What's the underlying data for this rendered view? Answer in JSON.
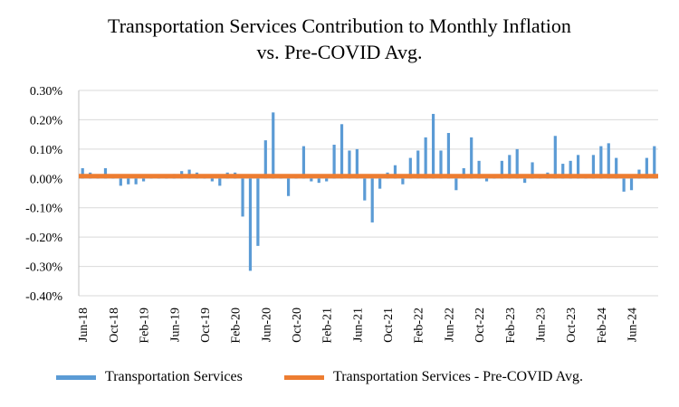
{
  "chart_data": {
    "type": "bar",
    "title_lines": [
      "Transportation Services Contribution to Monthly Inflation",
      "vs. Pre-COVID Avg."
    ],
    "xlabel": "",
    "ylabel": "",
    "ylim": [
      -0.4,
      0.3
    ],
    "yticks": [
      0.3,
      0.2,
      0.1,
      0.0,
      -0.1,
      -0.2,
      -0.3,
      -0.4
    ],
    "ytick_labels": [
      "0.30%",
      "0.20%",
      "0.10%",
      "0.00%",
      "-0.10%",
      "-0.20%",
      "-0.30%",
      "-0.40%"
    ],
    "categories_start": "Jun-18",
    "x_tick_labels": [
      "Jun-18",
      "Oct-18",
      "Feb-19",
      "Jun-19",
      "Oct-19",
      "Feb-20",
      "Jun-20",
      "Oct-20",
      "Feb-21",
      "Jun-21",
      "Oct-21",
      "Feb-22",
      "Jun-22",
      "Oct-22",
      "Feb-23",
      "Jun-23",
      "Oct-23",
      "Feb-24",
      "Jun-24"
    ],
    "grid": true,
    "legend_position": "bottom",
    "colors": {
      "bar": "#5b9bd5",
      "line": "#ed7d31",
      "grid": "#d9d9d9",
      "axis": "#bfbfbf"
    },
    "series": [
      {
        "name": "Transportation Services",
        "kind": "bar",
        "values": [
          0.035,
          0.02,
          0.01,
          0.035,
          0.005,
          -0.025,
          -0.02,
          -0.02,
          -0.01,
          0.005,
          0.01,
          0.005,
          0.015,
          0.025,
          0.03,
          0.02,
          0.005,
          -0.01,
          -0.025,
          0.02,
          0.02,
          -0.13,
          -0.315,
          -0.23,
          0.13,
          0.225,
          0.01,
          -0.06,
          0.01,
          0.11,
          -0.01,
          -0.015,
          -0.01,
          0.115,
          0.185,
          0.095,
          0.1,
          -0.075,
          -0.15,
          -0.035,
          0.02,
          0.045,
          -0.02,
          0.07,
          0.095,
          0.14,
          0.22,
          0.095,
          0.155,
          -0.04,
          0.035,
          0.14,
          0.06,
          -0.01,
          0.005,
          0.06,
          0.08,
          0.1,
          -0.015,
          0.055,
          0.01,
          0.02,
          0.145,
          0.05,
          0.06,
          0.08,
          0.01,
          0.08,
          0.11,
          0.12,
          0.07,
          -0.045,
          -0.04,
          0.03,
          0.07,
          0.11
        ]
      },
      {
        "name": "Transportation Services - Pre-COVID Avg.",
        "kind": "line",
        "value": 0.008
      }
    ]
  }
}
